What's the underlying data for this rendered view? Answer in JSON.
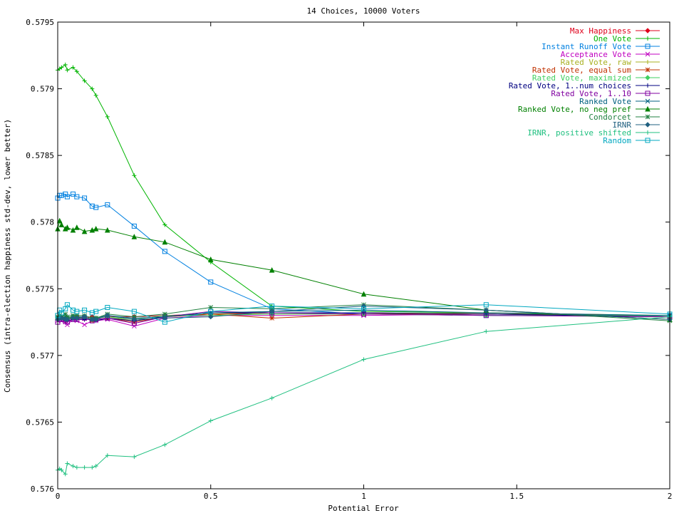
{
  "chart_data": {
    "type": "line",
    "title": "14 Choices, 10000 Voters",
    "xlabel": "Potential Error",
    "ylabel": "Consensus (intra-election happiness std-dev, lower better)",
    "xlim": [
      0,
      2
    ],
    "ylim": [
      0.576,
      0.5795
    ],
    "x_ticks": [
      "0",
      "0.5",
      "1",
      "1.5",
      "2"
    ],
    "y_ticks": [
      "0.576",
      "0.5765",
      "0.577",
      "0.5775",
      "0.578",
      "0.5785",
      "0.579",
      "0.5795"
    ],
    "grid": false,
    "legend_position": "top-right",
    "x": [
      0,
      0.00625,
      0.0125,
      0.025,
      0.03125,
      0.05,
      0.0625,
      0.0875,
      0.1125,
      0.125,
      0.1625,
      0.25,
      0.35,
      0.5,
      0.7,
      1,
      1.4,
      2
    ],
    "series": [
      {
        "name": "Max Happiness",
        "color": "#e0001b",
        "marker": "diamond",
        "values": [
          0.57727,
          0.57729,
          0.57728,
          0.57726,
          0.57728,
          0.57729,
          0.57729,
          0.57728,
          0.57729,
          0.57728,
          0.57729,
          0.57729,
          0.5773,
          0.57731,
          0.57732,
          0.57732,
          0.57731,
          0.5773
        ]
      },
      {
        "name": "One Vote",
        "color": "#00b400",
        "marker": "plus",
        "values": [
          0.57914,
          0.57915,
          0.57916,
          0.57918,
          0.57914,
          0.57916,
          0.57913,
          0.57906,
          0.579,
          0.57895,
          0.57879,
          0.57835,
          0.57798,
          0.5777,
          0.57737,
          0.57733,
          0.57732,
          0.57729
        ]
      },
      {
        "name": "Instant Runoff Vote",
        "color": "#0080e0",
        "marker": "square",
        "values": [
          0.57818,
          0.5782,
          0.5782,
          0.57821,
          0.57819,
          0.57821,
          0.57819,
          0.57818,
          0.57812,
          0.57811,
          0.57813,
          0.57797,
          0.57778,
          0.57755,
          0.57735,
          0.57731,
          0.5773,
          0.5773
        ]
      },
      {
        "name": "Acceptance Vote",
        "color": "#c000c0",
        "marker": "x",
        "values": [
          0.57726,
          0.57727,
          0.57726,
          0.57725,
          0.57723,
          0.57727,
          0.57726,
          0.57723,
          0.57726,
          0.57726,
          0.57727,
          0.57722,
          0.57728,
          0.5773,
          0.5773,
          0.5773,
          0.57731,
          0.57729
        ]
      },
      {
        "name": "Rated Vote, raw",
        "color": "#a8b020",
        "marker": "plus",
        "values": [
          0.57729,
          0.5773,
          0.57729,
          0.57728,
          0.57727,
          0.57729,
          0.57728,
          0.57727,
          0.57728,
          0.57728,
          0.57729,
          0.57726,
          0.57729,
          0.57731,
          0.57731,
          0.57731,
          0.57732,
          0.5773
        ]
      },
      {
        "name": "Rated Vote, equal sum",
        "color": "#c03000",
        "marker": "star",
        "values": [
          0.57728,
          0.57729,
          0.57728,
          0.57727,
          0.57727,
          0.57728,
          0.57728,
          0.57728,
          0.57726,
          0.57727,
          0.57728,
          0.57725,
          0.57729,
          0.57731,
          0.57728,
          0.57731,
          0.57731,
          0.57729
        ]
      },
      {
        "name": "Rated Vote, maximized",
        "color": "#40d060",
        "marker": "diamond",
        "values": [
          0.57728,
          0.57729,
          0.57728,
          0.57728,
          0.57728,
          0.57729,
          0.57728,
          0.57728,
          0.57727,
          0.57728,
          0.57729,
          0.57727,
          0.5773,
          0.5773,
          0.57731,
          0.57731,
          0.5773,
          0.5773
        ]
      },
      {
        "name": "Rated Vote, 1..num choices",
        "color": "#000080",
        "marker": "plus",
        "values": [
          0.57727,
          0.57728,
          0.57727,
          0.57726,
          0.57726,
          0.57727,
          0.57727,
          0.57727,
          0.57727,
          0.57726,
          0.57728,
          0.57726,
          0.57729,
          0.57732,
          0.57732,
          0.57732,
          0.57731,
          0.57729
        ]
      },
      {
        "name": "Rated Vote, 1..10",
        "color": "#8000a0",
        "marker": "square",
        "values": [
          0.57725,
          0.57727,
          0.57727,
          0.57726,
          0.57725,
          0.57727,
          0.57727,
          0.57728,
          0.57726,
          0.57727,
          0.57728,
          0.57724,
          0.57729,
          0.57733,
          0.57732,
          0.57731,
          0.5773,
          0.57729
        ]
      },
      {
        "name": "Ranked Vote",
        "color": "#006080",
        "marker": "x",
        "values": [
          0.57728,
          0.57729,
          0.57728,
          0.57729,
          0.57728,
          0.57729,
          0.57729,
          0.57729,
          0.57727,
          0.57728,
          0.5773,
          0.57728,
          0.57729,
          0.57732,
          0.57733,
          0.57734,
          0.57732,
          0.5773
        ]
      },
      {
        "name": "Ranked Vote, no neg pref",
        "color": "#008000",
        "marker": "triangle",
        "values": [
          0.57795,
          0.57801,
          0.57798,
          0.57795,
          0.57796,
          0.57794,
          0.57796,
          0.57793,
          0.57794,
          0.57795,
          0.57794,
          0.57789,
          0.57785,
          0.57772,
          0.57764,
          0.57746,
          0.57734,
          0.57727
        ]
      },
      {
        "name": "Condorcet",
        "color": "#208040",
        "marker": "star",
        "values": [
          0.57729,
          0.5773,
          0.57729,
          0.57731,
          0.57729,
          0.5773,
          0.5773,
          0.5773,
          0.57728,
          0.57728,
          0.57731,
          0.57729,
          0.57731,
          0.57736,
          0.57735,
          0.57738,
          0.57734,
          0.57726
        ]
      },
      {
        "name": "IRNR",
        "color": "#206080",
        "marker": "diamond",
        "values": [
          0.57727,
          0.57728,
          0.57728,
          0.57727,
          0.57727,
          0.57728,
          0.57728,
          0.57729,
          0.57727,
          0.57727,
          0.5773,
          0.57727,
          0.57728,
          0.57729,
          0.57733,
          0.57737,
          0.57734,
          0.57727
        ]
      },
      {
        "name": "IRNR, positive shifted",
        "color": "#20c080",
        "marker": "plus",
        "values": [
          0.57614,
          0.57615,
          0.57614,
          0.57611,
          0.57619,
          0.57617,
          0.57616,
          0.57616,
          0.57616,
          0.57617,
          0.57625,
          0.57624,
          0.57633,
          0.57651,
          0.57668,
          0.57697,
          0.57718,
          0.57729
        ]
      },
      {
        "name": "Random",
        "color": "#00a8c0",
        "marker": "square",
        "values": [
          0.5773,
          0.57734,
          0.57732,
          0.57735,
          0.57738,
          0.57734,
          0.57733,
          0.57734,
          0.57732,
          0.57733,
          0.57736,
          0.57733,
          0.57725,
          0.57733,
          0.57737,
          0.57735,
          0.57738,
          0.57731
        ]
      }
    ]
  }
}
